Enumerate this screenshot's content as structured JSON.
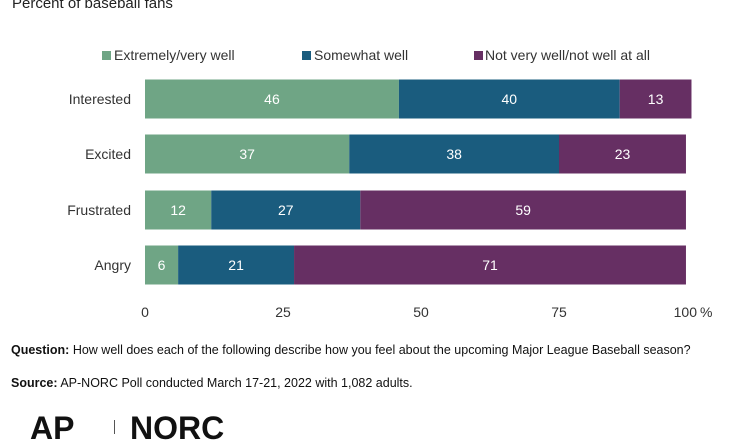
{
  "header": {
    "subtitle": "Percent of baseball fans"
  },
  "chart_data": {
    "type": "bar",
    "orientation": "horizontal",
    "stacked": true,
    "categories": [
      "Interested",
      "Excited",
      "Frustrated",
      "Angry"
    ],
    "series": [
      {
        "name": "Extremely/very well",
        "color": "#6fa585",
        "values": [
          46,
          37,
          12,
          6
        ]
      },
      {
        "name": "Somewhat well",
        "color": "#1a5c7e",
        "values": [
          40,
          38,
          27,
          21
        ]
      },
      {
        "name": "Not very well/not well at all",
        "color": "#662f63",
        "values": [
          13,
          23,
          59,
          71
        ]
      }
    ],
    "xlim": [
      0,
      100
    ],
    "xticks": [
      "0",
      "25",
      "50",
      "75",
      "100"
    ],
    "xunit": "%",
    "legend": "top",
    "grid": false
  },
  "footer": {
    "question_label": "Question:",
    "question_text": "How well does each of the following describe how you feel about the upcoming Major League Baseball season?",
    "source_label": "Source:",
    "source_text": "AP-NORC Poll conducted March 17-21, 2022 with 1,082 adults.",
    "logo_left": "AP",
    "logo_right": "NORC"
  }
}
